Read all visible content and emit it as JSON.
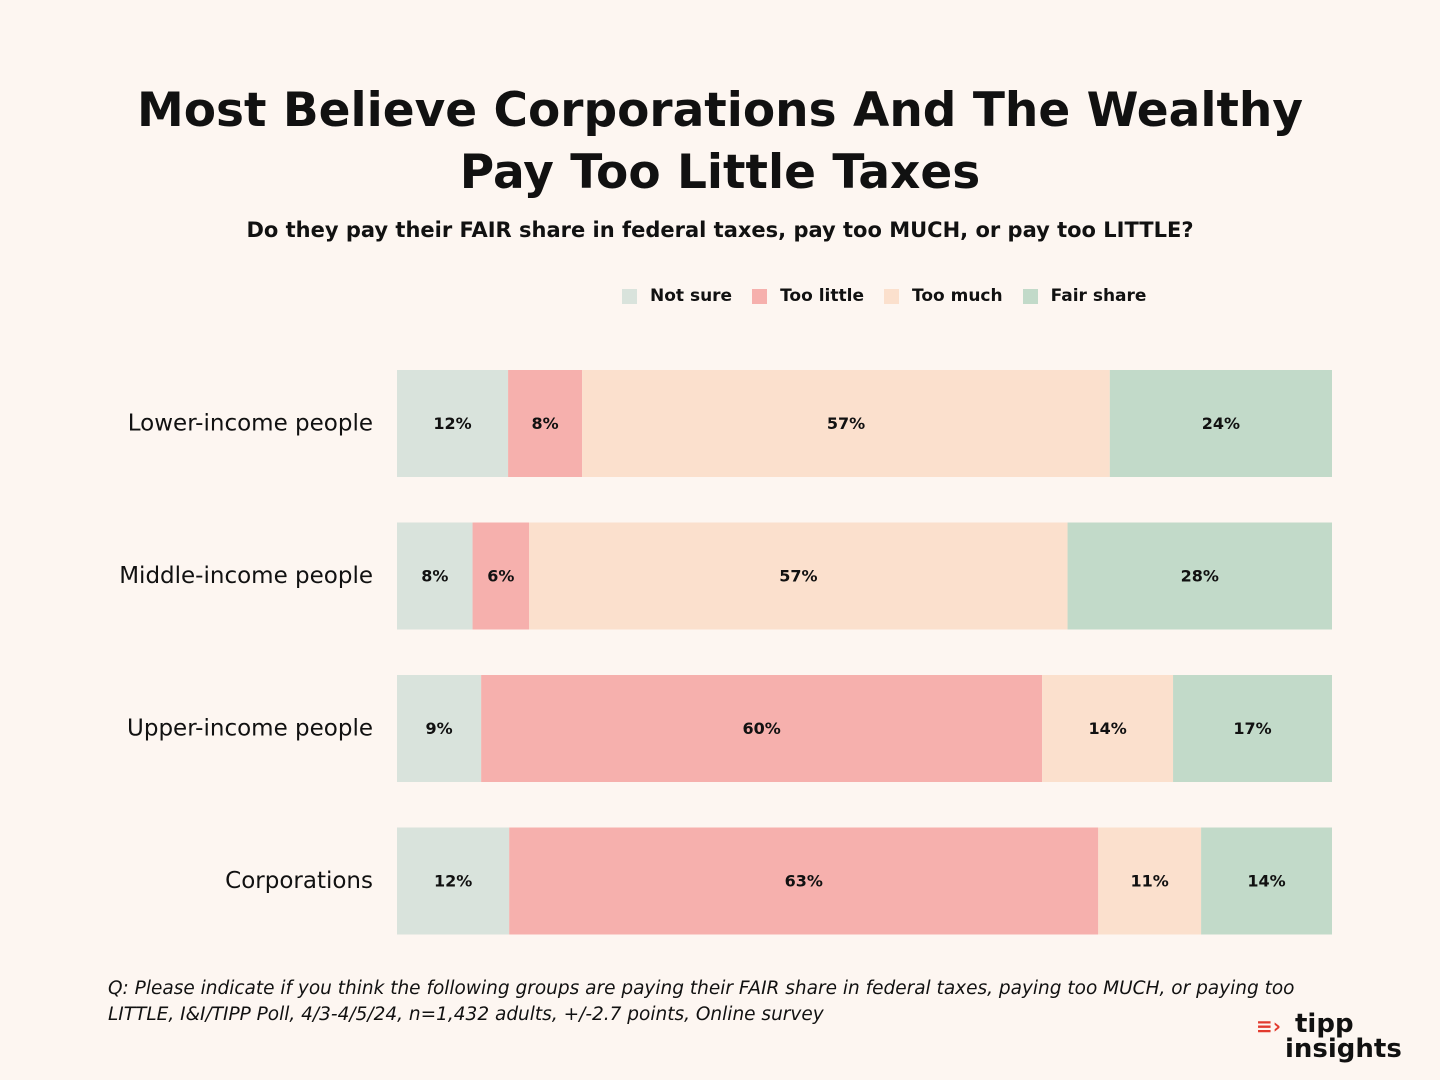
{
  "chart_data": {
    "type": "bar",
    "orientation": "horizontal",
    "stacked": true,
    "title": "Most Believe Corporations And The Wealthy Pay Too Little Taxes",
    "subtitle": "Do they pay their FAIR share in federal taxes, pay too MUCH, or pay too LITTLE?",
    "categories": [
      "Lower-income people",
      "Middle-income people",
      "Upper-income people",
      "Corporations"
    ],
    "series": [
      {
        "name": "Not sure",
        "color": "#d9e3dc",
        "values": [
          12,
          8,
          9,
          12
        ],
        "labels": [
          "12%",
          "8%",
          "9%",
          "12%"
        ]
      },
      {
        "name": "Too little",
        "color": "#f6b0ad",
        "values": [
          8,
          6,
          60,
          63
        ],
        "labels": [
          "8%",
          "6%",
          "60%",
          "63%"
        ]
      },
      {
        "name": "Too much",
        "color": "#fbe0cd",
        "values": [
          57,
          57,
          14,
          11
        ],
        "labels": [
          "57%",
          "57%",
          "14%",
          "11%"
        ]
      },
      {
        "name": "Fair share",
        "color": "#c2dac9",
        "values": [
          24,
          28,
          17,
          14
        ],
        "labels": [
          "24%",
          "28%",
          "17%",
          "14%"
        ]
      }
    ],
    "legend_position": "top-right",
    "xlabel": "",
    "ylabel": "",
    "grid": false
  },
  "footnote": "Q: Please indicate if you think the following groups are paying their FAIR share in federal taxes, paying too MUCH, or paying too LITTLE, I&I/TIPP Poll, 4/3-4/5/24, n=1,432 adults, +/-2.7 points, Online survey",
  "logo": {
    "line1": "tipp",
    "line2": "insights",
    "mark": "≡›",
    "accent": "#e23a2e"
  }
}
